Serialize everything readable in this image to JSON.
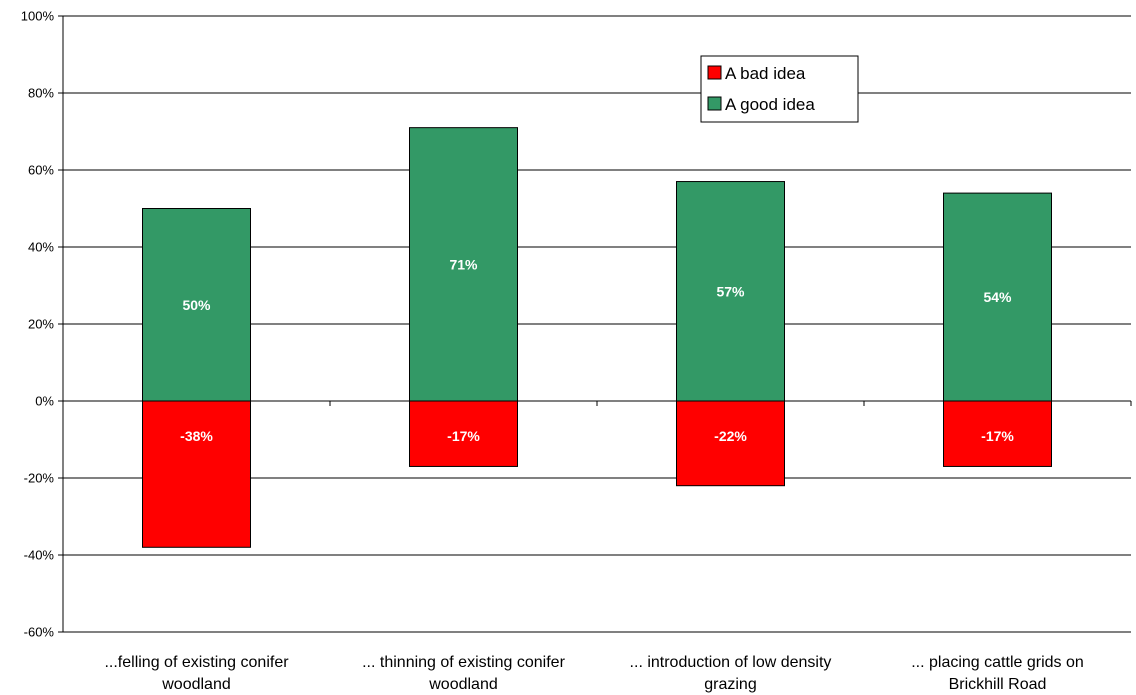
{
  "chart_data": {
    "type": "bar",
    "stacking": "diverging",
    "categories": [
      [
        "...felling of existing conifer",
        "woodland"
      ],
      [
        "... thinning of existing conifer",
        "woodland"
      ],
      [
        "... introduction of low density",
        "grazing"
      ],
      [
        "... placing cattle grids on",
        "Brickhill Road"
      ]
    ],
    "series": [
      {
        "name": "A bad idea",
        "color": "#ff0000",
        "values": [
          -38,
          -17,
          -22,
          -17
        ],
        "labels": [
          "-38%",
          "-17%",
          "-22%",
          "-17%"
        ]
      },
      {
        "name": "A good idea",
        "color": "#339966",
        "values": [
          50,
          71,
          57,
          54
        ],
        "labels": [
          "50%",
          "71%",
          "57%",
          "54%"
        ]
      }
    ],
    "ylim": [
      -60,
      100
    ],
    "yticks": [
      -60,
      -40,
      -20,
      0,
      20,
      40,
      60,
      80,
      100
    ],
    "ytick_labels": [
      "-60%",
      "-40%",
      "-20%",
      "0%",
      "20%",
      "40%",
      "60%",
      "80%",
      "100%"
    ],
    "grid": true,
    "legend_position": "top-right",
    "title": "",
    "xlabel": "",
    "ylabel": ""
  }
}
